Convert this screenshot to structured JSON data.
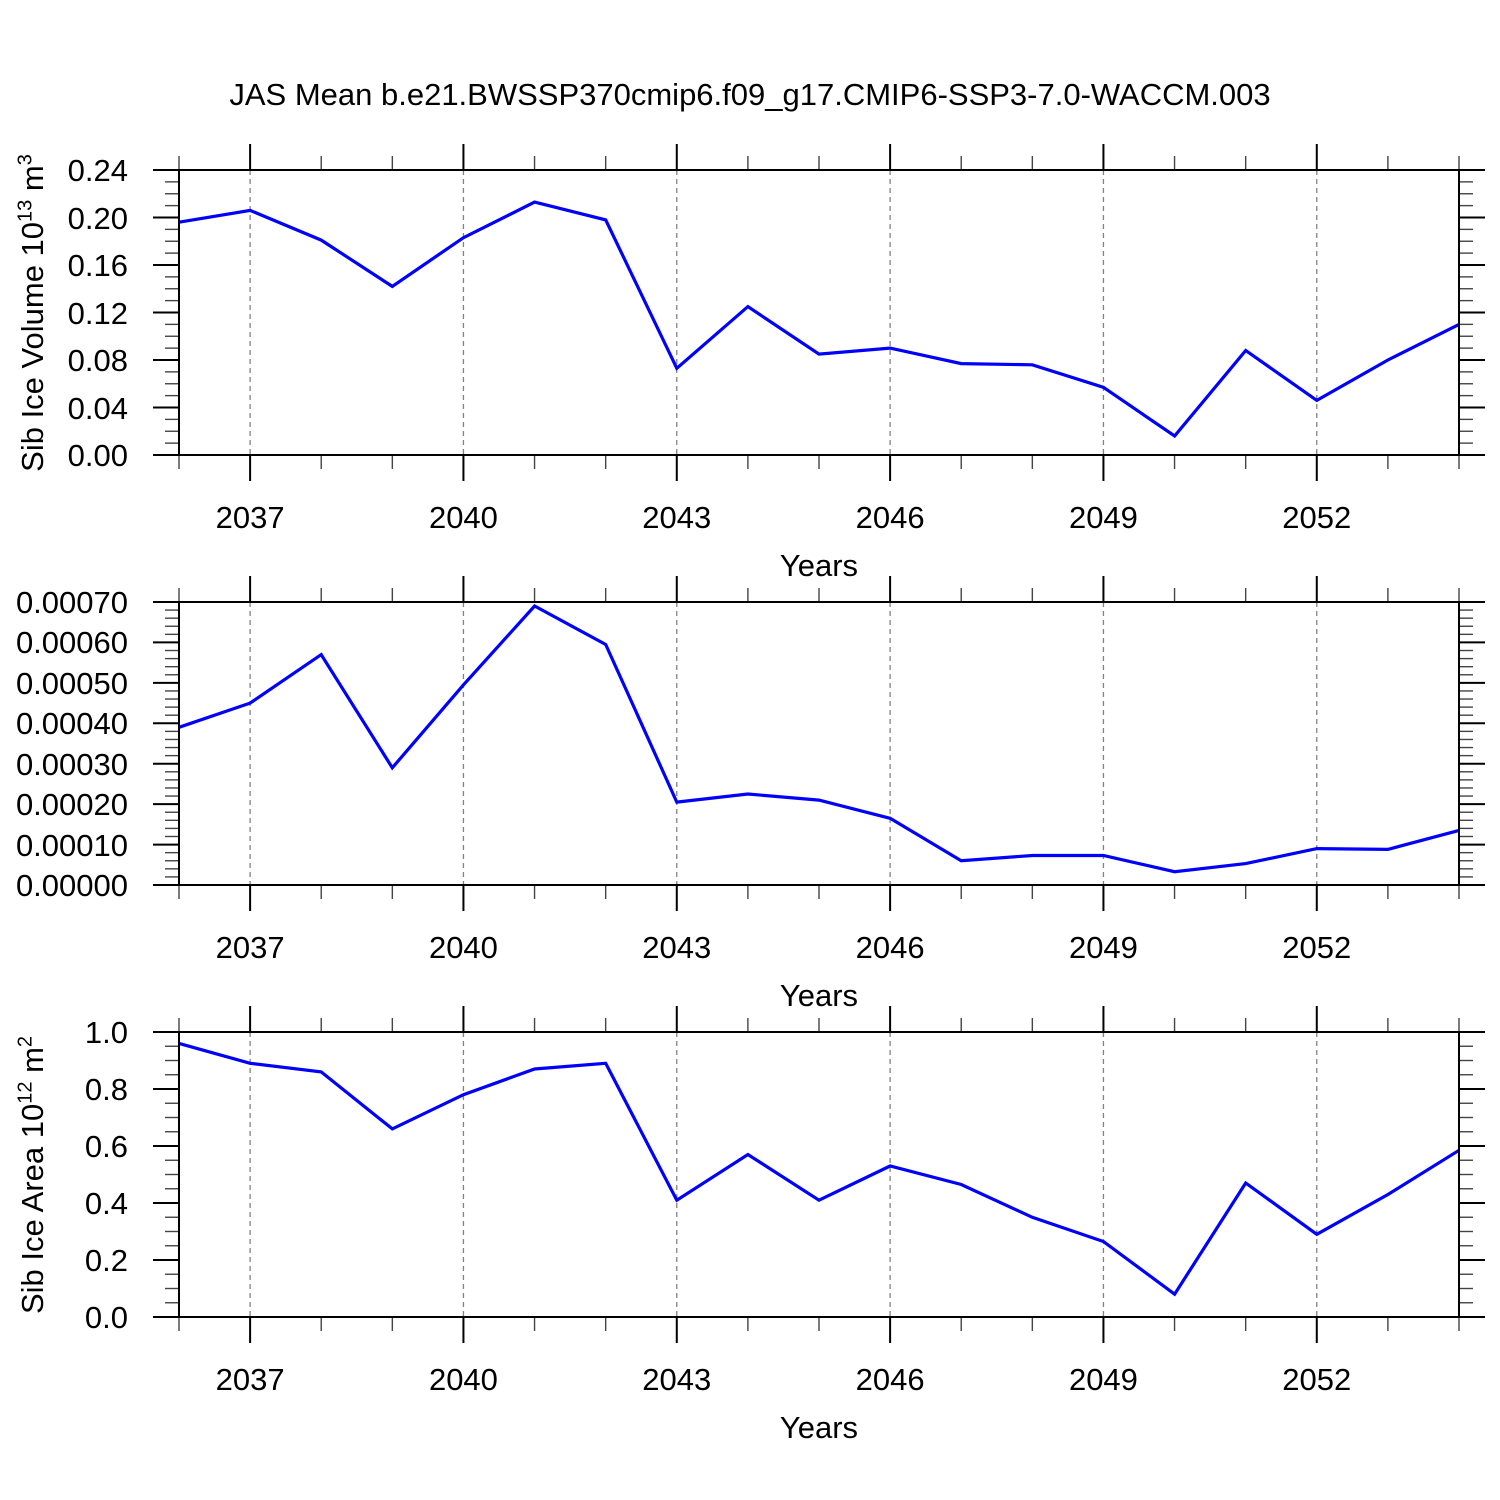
{
  "title": "JAS Mean b.e21.BWSSP370cmip6.f09_g17.CMIP6-SSP3-7.0-WACCM.003",
  "colors": {
    "line": "#0000ff",
    "frame": "#000000",
    "grid": "#828282",
    "minor_tick": "#444444"
  },
  "x_axis": {
    "label": "Years",
    "start_year": 2036,
    "end_year": 2054,
    "major_tick_years": [
      2037,
      2040,
      2043,
      2046,
      2049,
      2052
    ],
    "tick_labels": [
      "2037",
      "2040",
      "2043",
      "2046",
      "2049",
      "2052"
    ]
  },
  "chart_data": [
    {
      "type": "line",
      "name": "sib-ice-volume",
      "y_title": {
        "text": "Sib Ice Volume 10",
        "exp": "13",
        "unit": " m",
        "unit_exp": "3"
      },
      "ylim": [
        0,
        0.24
      ],
      "ytick_step": 0.04,
      "yminor_step": 0.01,
      "ytick_labels": [
        "0.24",
        "0.20",
        "0.16",
        "0.12",
        "0.08",
        "0.04",
        "0.00"
      ],
      "x": [
        2036,
        2037,
        2038,
        2039,
        2040,
        2041,
        2042,
        2043,
        2044,
        2045,
        2046,
        2047,
        2048,
        2049,
        2050,
        2051,
        2052,
        2053,
        2054
      ],
      "values": [
        0.196,
        0.206,
        0.181,
        0.142,
        0.183,
        0.213,
        0.198,
        0.073,
        0.125,
        0.085,
        0.09,
        0.077,
        0.076,
        0.057,
        0.016,
        0.088,
        0.046,
        0.08,
        0.11
      ]
    },
    {
      "type": "line",
      "name": "sib-ice-middle",
      "ylim": [
        0,
        0.0007
      ],
      "ytick_step": 0.0001,
      "yminor_step": 2e-05,
      "ytick_labels": [
        "0.00070",
        "0.00060",
        "0.00050",
        "0.00040",
        "0.00030",
        "0.00020",
        "0.00010",
        "0.00000"
      ],
      "x": [
        2036,
        2037,
        2038,
        2039,
        2040,
        2041,
        2042,
        2043,
        2044,
        2045,
        2046,
        2047,
        2048,
        2049,
        2050,
        2051,
        2052,
        2053,
        2054
      ],
      "values": [
        0.00039,
        0.00045,
        0.00057,
        0.00029,
        0.000495,
        0.00069,
        0.000595,
        0.000205,
        0.000225,
        0.00021,
        0.000165,
        6e-05,
        7.3e-05,
        7.3e-05,
        3.3e-05,
        5.3e-05,
        9e-05,
        8.8e-05,
        0.000135
      ]
    },
    {
      "type": "line",
      "name": "sib-ice-area",
      "y_title": {
        "text": "Sib Ice Area 10",
        "exp": "12",
        "unit": " m",
        "unit_exp": "2"
      },
      "ylim": [
        0,
        1.0
      ],
      "ytick_step": 0.2,
      "yminor_step": 0.05,
      "ytick_labels": [
        "1.0",
        "0.8",
        "0.6",
        "0.4",
        "0.2",
        "0.0"
      ],
      "x": [
        2036,
        2037,
        2038,
        2039,
        2040,
        2041,
        2042,
        2043,
        2044,
        2045,
        2046,
        2047,
        2048,
        2049,
        2050,
        2051,
        2052,
        2053,
        2054
      ],
      "values": [
        0.96,
        0.89,
        0.86,
        0.66,
        0.78,
        0.87,
        0.89,
        0.41,
        0.57,
        0.41,
        0.53,
        0.465,
        0.35,
        0.265,
        0.08,
        0.47,
        0.29,
        0.43,
        0.585
      ]
    }
  ]
}
